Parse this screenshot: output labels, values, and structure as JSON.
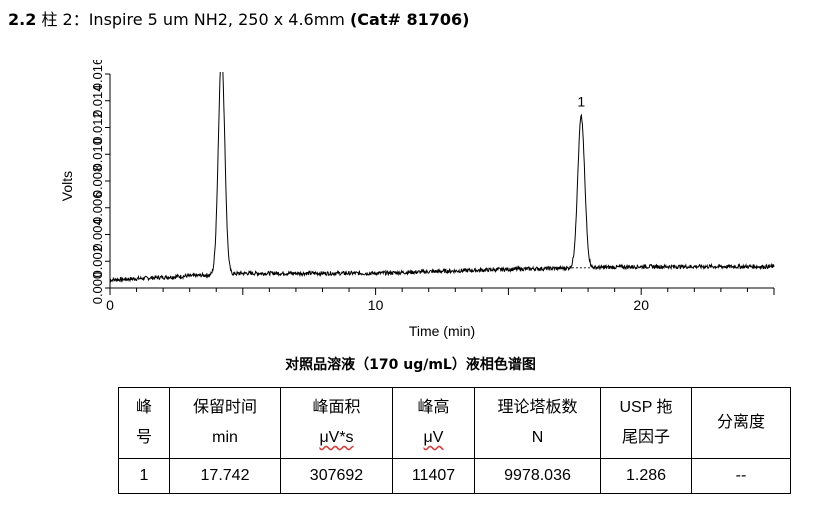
{
  "heading": {
    "section": "2.2",
    "column": "柱 2：Inspire 5 um NH2, 250 x 4.6mm",
    "cat": "(Cat# 81706)"
  },
  "chart_data": {
    "type": "line",
    "xlabel": "Time (min)",
    "ylabel": "Volts",
    "xlim": [
      0,
      25
    ],
    "ylim": [
      0,
      0.016
    ],
    "xticks": [
      0,
      10,
      20
    ],
    "yticks": [
      "0.000",
      "0.002",
      "0.004",
      "0.006",
      "0.008",
      "0.010",
      "0.012",
      "0.014",
      "0.016"
    ],
    "peaks": [
      {
        "time": 4.2,
        "height": 0.0165,
        "width": 0.12,
        "label": ""
      },
      {
        "time": 17.742,
        "height": 0.0113,
        "width": 0.13,
        "label": "1"
      }
    ],
    "baseline": [
      [
        0,
        0.0006
      ],
      [
        5,
        0.0011
      ],
      [
        10,
        0.0011
      ],
      [
        15,
        0.0014
      ],
      [
        20,
        0.0016
      ],
      [
        25,
        0.0016
      ]
    ]
  },
  "caption": "对照品溶液（170 ug/mL）液相色谱图",
  "table": {
    "headers": [
      [
        "峰",
        "号"
      ],
      [
        "保留时间",
        "min"
      ],
      [
        "峰面积",
        "μV*s"
      ],
      [
        "峰高",
        "μV"
      ],
      [
        "理论塔板数",
        "N"
      ],
      [
        "USP 拖",
        "尾因子"
      ],
      [
        "分离度"
      ]
    ],
    "rows": [
      [
        "1",
        "17.742",
        "307692",
        "11407",
        "9978.036",
        "1.286",
        "--"
      ]
    ]
  }
}
